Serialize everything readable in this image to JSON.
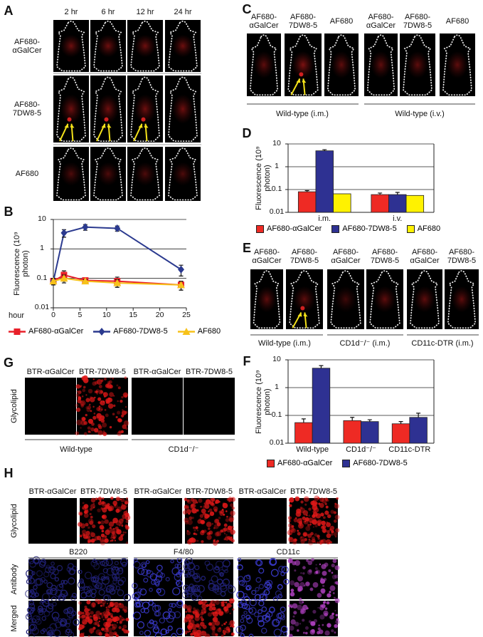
{
  "panel_labels": [
    "A",
    "B",
    "C",
    "D",
    "E",
    "F",
    "G",
    "H"
  ],
  "panel_a": {
    "columns": [
      "2 hr",
      "6 hr",
      "12 hr",
      "24 hr"
    ],
    "rows": [
      "AF680-αGalCer",
      "AF680-7DW8-5",
      "AF680"
    ]
  },
  "panel_c": {
    "columns": [
      "AF680-αGalCer",
      "AF680-7DW8-5",
      "AF680",
      "AF680-αGalCer",
      "AF680-7DW8-5",
      "AF680"
    ],
    "groups": [
      "Wild-type (i.m.)",
      "Wild-type (i.v.)"
    ]
  },
  "panel_e": {
    "columns": [
      "AF680-αGalCer",
      "AF680-7DW8-5",
      "AF680-αGalCer",
      "AF680-7DW8-5",
      "AF680-αGalCer",
      "AF680-7DW8-5"
    ],
    "groups": [
      "Wild-type (i.m.)",
      "CD1d⁻/⁻ (i.m.)",
      "CD11c-DTR  (i.m.)"
    ]
  },
  "panel_g": {
    "columns": [
      "BTR-αGalCer",
      "BTR-7DW8-5",
      "BTR-αGalCer",
      "BTR-7DW8-5"
    ],
    "groups": [
      "Wild-type",
      "CD1d⁻/⁻"
    ],
    "row_label": "Glycolipid"
  },
  "panel_h": {
    "columns": [
      "BTR-αGalCer",
      "BTR-7DW8-5",
      "BTR-αGalCer",
      "BTR-7DW8-5",
      "BTR-αGalCer",
      "BTR-7DW8-5"
    ],
    "groups": [
      "B220",
      "F4/80",
      "CD11c"
    ],
    "rows": [
      "Glycolipid",
      "Antibody",
      "Merged"
    ]
  },
  "chart_data": [
    {
      "type": "line",
      "ylabel": "Fluorescence (10⁹ photon)",
      "xlabel": "hour",
      "x": [
        0,
        2,
        6,
        12,
        24
      ],
      "xlim": [
        0,
        25
      ],
      "xticks": [
        0,
        5,
        10,
        15,
        20,
        25
      ],
      "ylim": [
        0.01,
        10
      ],
      "yticks": [
        0.01,
        0.1,
        1,
        10
      ],
      "log_y": true,
      "grid": true,
      "series": [
        {
          "name": "AF680-αGalCer",
          "color": "#e8202a",
          "marker": "square",
          "values": [
            0.08,
            0.13,
            0.085,
            0.08,
            0.06
          ],
          "errors": [
            0.02,
            0.05,
            0.015,
            0.03,
            0.02
          ]
        },
        {
          "name": "AF680-7DW8-5",
          "color": "#2b3a8f",
          "marker": "diamond",
          "values": [
            0.08,
            3.5,
            5.5,
            5,
            0.2
          ],
          "errors": [
            0.02,
            1,
            1.2,
            1,
            0.08
          ]
        },
        {
          "name": "AF680",
          "color": "#f7c21a",
          "marker": "triangle",
          "values": [
            0.08,
            0.1,
            0.08,
            0.07,
            0.06
          ],
          "errors": [
            0.02,
            0.03,
            0.01,
            0.02,
            0.02
          ]
        }
      ]
    },
    {
      "type": "bar",
      "ylabel": "Fluorescence (10⁹ photon)",
      "categories": [
        "i.m.",
        "i.v."
      ],
      "ylim": [
        0.01,
        10
      ],
      "yticks": [
        0.01,
        0.1,
        1,
        10
      ],
      "log_y": true,
      "grid": true,
      "series": [
        {
          "name": "AF680-αGalCer",
          "color": "#ee2a24",
          "values": [
            0.08,
            0.06
          ],
          "errors": [
            0.01,
            0.01
          ]
        },
        {
          "name": "AF680-7DW8-5",
          "color": "#2e3192",
          "values": [
            5,
            0.06
          ],
          "errors": [
            0.6,
            0.015
          ]
        },
        {
          "name": "AF680",
          "color": "#fff200",
          "values": [
            0.065,
            0.055
          ],
          "errors": [
            0,
            0
          ]
        }
      ]
    },
    {
      "type": "bar",
      "ylabel": "Fluorescence (10⁹ photon)",
      "categories": [
        "Wild-type",
        "CD1d⁻/⁻",
        "CD11c-DTR"
      ],
      "ylim": [
        0.01,
        10
      ],
      "yticks": [
        0.01,
        0.1,
        1,
        10
      ],
      "log_y": true,
      "grid": true,
      "series": [
        {
          "name": "AF680-αGalCer",
          "color": "#ee2a24",
          "values": [
            0.055,
            0.065,
            0.05
          ],
          "errors": [
            0.02,
            0.02,
            0.01
          ]
        },
        {
          "name": "AF680-7DW8-5",
          "color": "#2e3192",
          "values": [
            5,
            0.06,
            0.085
          ],
          "errors": [
            1.2,
            0.01,
            0.035
          ]
        }
      ]
    }
  ]
}
